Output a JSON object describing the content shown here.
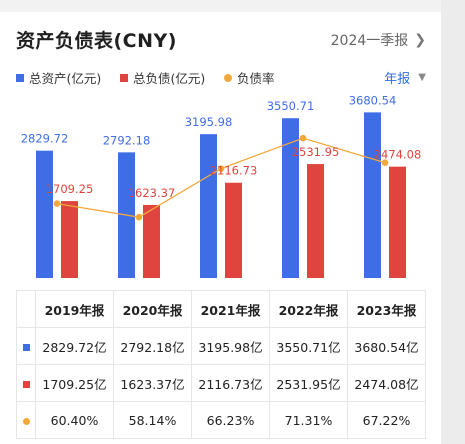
{
  "header": {
    "title": "资产负债表(CNY)",
    "period": "2024一季报"
  },
  "legend": {
    "assets": "总资产(亿元)",
    "liabilities": "总负债(亿元)",
    "ratio": "负债率",
    "filter": "年报"
  },
  "colors": {
    "assets": "#3f6de6",
    "liabilities": "#e0443f",
    "ratio": "#f2a93b"
  },
  "chart_data": {
    "type": "bar",
    "categories": [
      "2019年报",
      "2020年报",
      "2021年报",
      "2022年报",
      "2023年报"
    ],
    "series": [
      {
        "name": "总资产(亿元)",
        "values": [
          2829.72,
          2792.18,
          3195.98,
          3550.71,
          3680.54
        ],
        "labels": [
          "2829.72",
          "2792.18",
          "3195.98",
          "3550.71",
          "3680.54"
        ]
      },
      {
        "name": "总负债(亿元)",
        "values": [
          1709.25,
          1623.37,
          2116.73,
          2531.95,
          2474.08
        ],
        "labels": [
          "1709.25",
          "1623.37",
          "2116.73",
          "2531.95",
          "2474.08"
        ]
      },
      {
        "name": "负债率",
        "type": "line",
        "values": [
          60.4,
          58.14,
          66.23,
          71.31,
          67.22
        ]
      }
    ],
    "ylim": [
      0,
      4000
    ],
    "ratio_ylim": [
      48,
      78
    ],
    "grid": false,
    "legend_position": "top-left"
  },
  "table": {
    "headers": [
      "2019年报",
      "2020年报",
      "2021年报",
      "2022年报",
      "2023年报"
    ],
    "rows": [
      {
        "marker": "assets",
        "cells": [
          "2829.72亿",
          "2792.18亿",
          "3195.98亿",
          "3550.71亿",
          "3680.54亿"
        ]
      },
      {
        "marker": "liabilities",
        "cells": [
          "1709.25亿",
          "1623.37亿",
          "2116.73亿",
          "2531.95亿",
          "2474.08亿"
        ]
      },
      {
        "marker": "ratio",
        "cells": [
          "60.40%",
          "58.14%",
          "66.23%",
          "71.31%",
          "67.22%"
        ]
      }
    ]
  }
}
